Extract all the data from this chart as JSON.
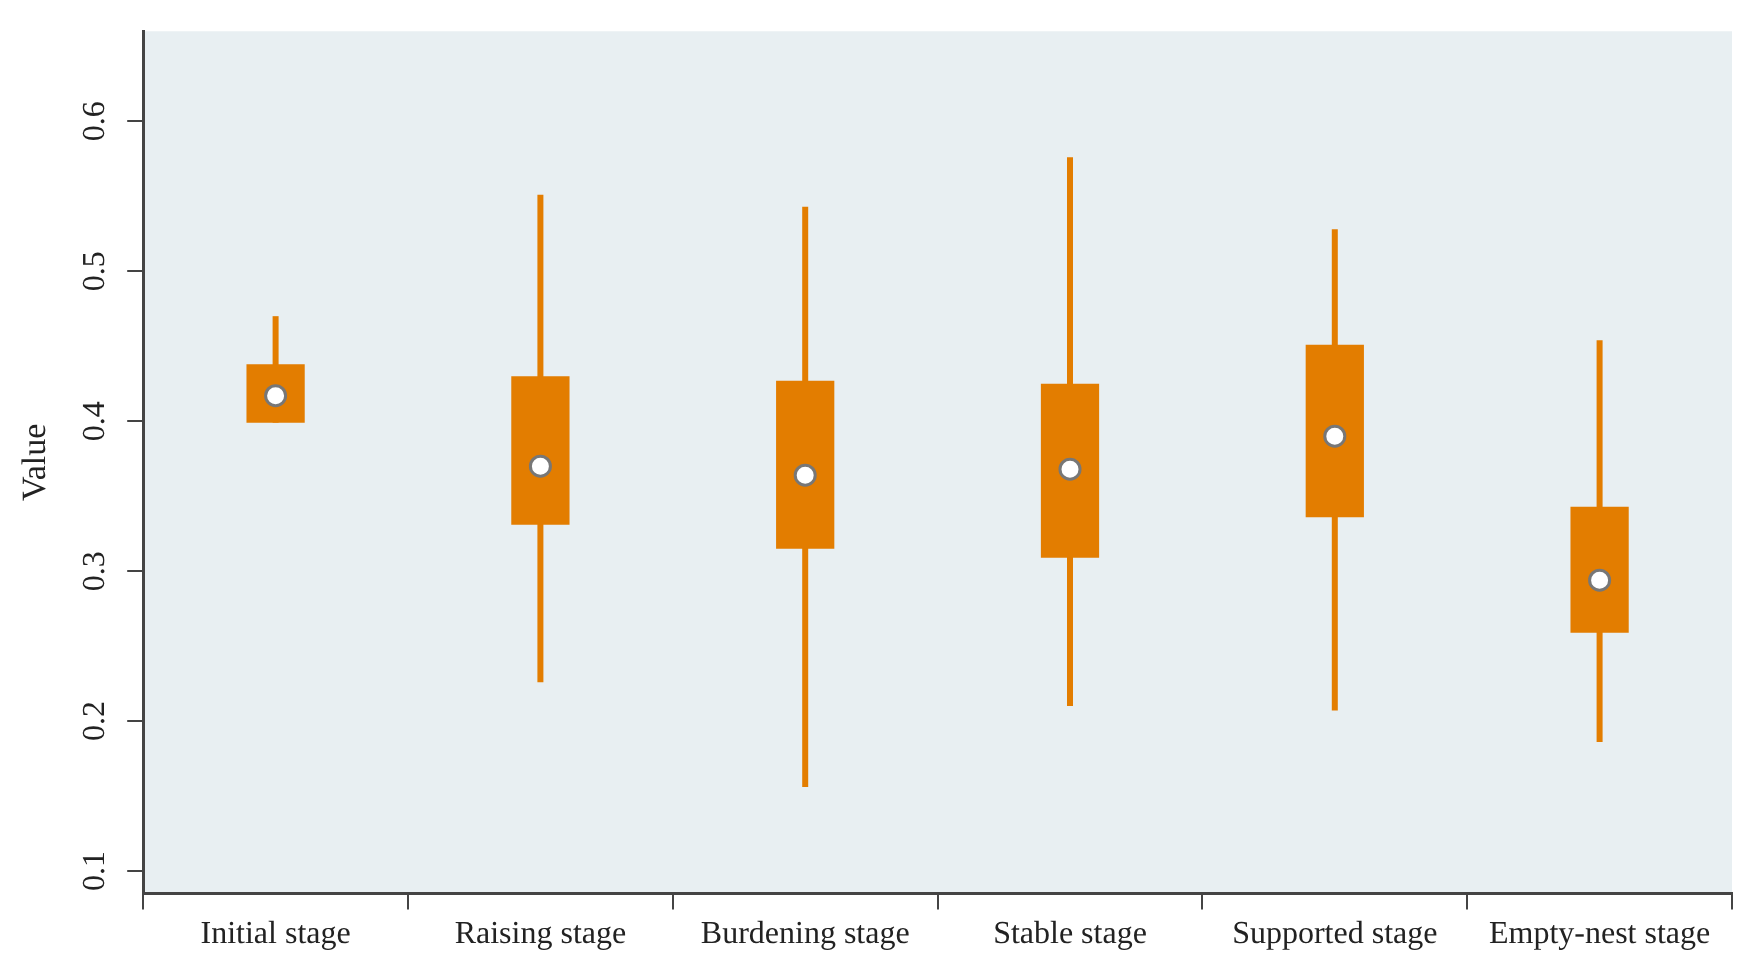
{
  "chart_data": {
    "type": "box",
    "ylabel": "Value",
    "categories": [
      "Initial stage",
      "Raising stage",
      "Burdening stage",
      "Stable stage",
      "Supported stage",
      "Empty-nest stage"
    ],
    "series": [
      {
        "color": "#e37d00",
        "boxes": [
          {
            "low": 0.399,
            "q1": 0.399,
            "median": 0.417,
            "q3": 0.438,
            "high": 0.47
          },
          {
            "low": 0.226,
            "q1": 0.331,
            "median": 0.37,
            "q3": 0.43,
            "high": 0.551
          },
          {
            "low": 0.156,
            "q1": 0.315,
            "median": 0.364,
            "q3": 0.427,
            "high": 0.543
          },
          {
            "low": 0.21,
            "q1": 0.309,
            "median": 0.368,
            "q3": 0.425,
            "high": 0.576
          },
          {
            "low": 0.207,
            "q1": 0.336,
            "median": 0.39,
            "q3": 0.451,
            "high": 0.528
          },
          {
            "low": 0.186,
            "q1": 0.259,
            "median": 0.294,
            "q3": 0.343,
            "high": 0.454
          }
        ]
      }
    ],
    "ylim": [
      0.085,
      0.66
    ],
    "yticks": [
      0.1,
      0.2,
      0.3,
      0.4,
      0.5,
      0.6
    ]
  }
}
